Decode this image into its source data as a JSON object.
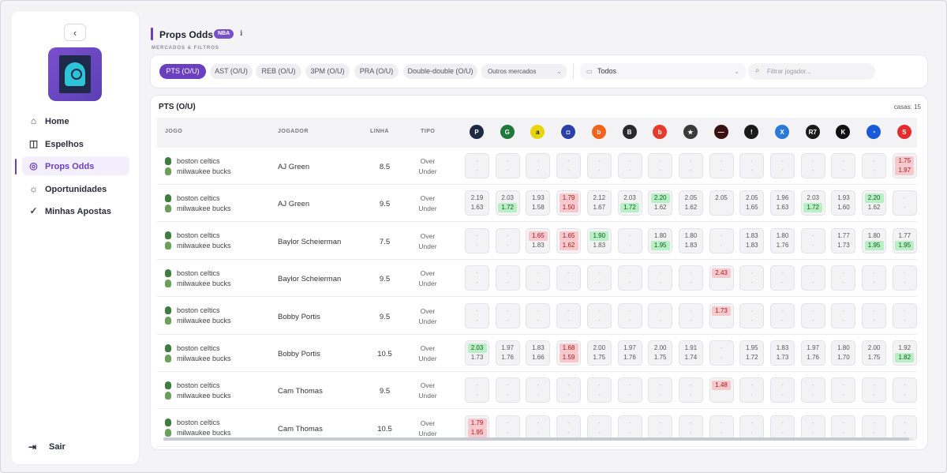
{
  "sidebar": {
    "back_icon": "chevron-left-icon",
    "items": [
      {
        "label": "Home",
        "icon": "home-icon",
        "glyph": "⌂"
      },
      {
        "label": "Espelhos",
        "icon": "book-icon",
        "glyph": "◫"
      },
      {
        "label": "Props Odds",
        "icon": "basketball-icon",
        "glyph": "◎"
      },
      {
        "label": "Oportunidades",
        "icon": "sun-icon",
        "glyph": "☼"
      },
      {
        "label": "Minhas Apostas",
        "icon": "check-icon",
        "glyph": "✓"
      }
    ],
    "active_index": 2,
    "logout_label": "Sair"
  },
  "header": {
    "title": "Props Odds",
    "badge": "NBA",
    "subtitle": "MERCADOS & FILTROS"
  },
  "filters": {
    "markets": [
      "PTS (O/U)",
      "AST (O/U)",
      "REB (O/U)",
      "3PM (O/U)",
      "PRA (O/U)",
      "Double-double (O/U)"
    ],
    "active_market": 0,
    "other_markets_label": "Outros mercados",
    "house_select_value": "Todos",
    "search_placeholder": "Filtrar jogador..."
  },
  "table": {
    "title": "PTS (O/U)",
    "casas_label": "casas: 15",
    "headers": {
      "jogo": "JOGO",
      "jogador": "JOGADOR",
      "linha": "LINHA",
      "tipo": "TIPO"
    },
    "bookmakers": [
      {
        "name": "p-book",
        "color": "#1d2a44",
        "glyph": "P"
      },
      {
        "name": "g-book",
        "color": "#1e7a3a",
        "glyph": "G"
      },
      {
        "name": "a-book",
        "color": "#e8d40a",
        "glyph": "a"
      },
      {
        "name": "square-book",
        "color": "#2a3fa8",
        "glyph": "◘"
      },
      {
        "name": "b-orange-book",
        "color": "#f0641e",
        "glyph": "b"
      },
      {
        "name": "b-dark-book",
        "color": "#2a2a2a",
        "glyph": "B"
      },
      {
        "name": "b-red-book",
        "color": "#e43c2c",
        "glyph": "b"
      },
      {
        "name": "star-book",
        "color": "#3a3a3a",
        "glyph": "★"
      },
      {
        "name": "dark-red-book",
        "color": "#3a1212",
        "glyph": "—"
      },
      {
        "name": "ring-book",
        "color": "#1a1a1a",
        "glyph": "!"
      },
      {
        "name": "x-book",
        "color": "#2b7ad8",
        "glyph": "X"
      },
      {
        "name": "r7-book",
        "color": "#1a1a1a",
        "glyph": "R7"
      },
      {
        "name": "k-book",
        "color": "#111111",
        "glyph": "K"
      },
      {
        "name": "blue-book",
        "color": "#1a5ad8",
        "glyph": "◔"
      },
      {
        "name": "s-book",
        "color": "#e42c2c",
        "glyph": "S"
      }
    ],
    "rows": [
      {
        "home": "boston celtics",
        "away": "milwaukee bucks",
        "player": "AJ Green",
        "line": "8.5",
        "over": "Over",
        "under": "Under",
        "odds": [
          [
            "-",
            "-"
          ],
          [
            "-",
            "-"
          ],
          [
            "-",
            "-"
          ],
          [
            "-",
            "-"
          ],
          [
            "-",
            "-"
          ],
          [
            "-",
            "-"
          ],
          [
            "-",
            "-"
          ],
          [
            "-",
            "-"
          ],
          [
            "-",
            "-"
          ],
          [
            "-",
            "-"
          ],
          [
            "-",
            "-"
          ],
          [
            "-",
            "-"
          ],
          [
            "-",
            "-"
          ],
          [
            "-",
            "-"
          ],
          [
            "1.75r",
            "1.97r"
          ]
        ]
      },
      {
        "home": "boston celtics",
        "away": "milwaukee bucks",
        "player": "AJ Green",
        "line": "9.5",
        "over": "Over",
        "under": "Under",
        "odds": [
          [
            "2.19",
            "1.63"
          ],
          [
            "2.03",
            "1.72g"
          ],
          [
            "1.93",
            "1.58"
          ],
          [
            "1.79r",
            "1.50r"
          ],
          [
            "2.12",
            "1.67"
          ],
          [
            "2.03",
            "1.72g"
          ],
          [
            "2.20g",
            "1.62"
          ],
          [
            "2.05",
            "1.62"
          ],
          [
            "2.05",
            ""
          ],
          [
            "2.05",
            "1.65"
          ],
          [
            "1.96",
            "1.63"
          ],
          [
            "2.03",
            "1.72g"
          ],
          [
            "1.93",
            "1.60"
          ],
          [
            "2.20g",
            "1.62"
          ],
          [
            "-",
            "-"
          ]
        ]
      },
      {
        "home": "boston celtics",
        "away": "milwaukee bucks",
        "player": "Baylor Scheierman",
        "line": "7.5",
        "over": "Over",
        "under": "Under",
        "odds": [
          [
            "-",
            "-"
          ],
          [
            "-",
            "-"
          ],
          [
            "1.65r",
            "1.83"
          ],
          [
            "1.65r",
            "1.62r"
          ],
          [
            "1.90g",
            "1.83"
          ],
          [
            "-",
            "-"
          ],
          [
            "1.80",
            "1.95g"
          ],
          [
            "1.80",
            "1.83"
          ],
          [
            "-",
            "-"
          ],
          [
            "1.83",
            "1.83"
          ],
          [
            "1.80",
            "1.76"
          ],
          [
            "-",
            "-"
          ],
          [
            "1.77",
            "1.73"
          ],
          [
            "1.80",
            "1.95g"
          ],
          [
            "1.77",
            "1.95g"
          ]
        ]
      },
      {
        "home": "boston celtics",
        "away": "milwaukee bucks",
        "player": "Baylor Scheierman",
        "line": "9.5",
        "over": "Over",
        "under": "Under",
        "odds": [
          [
            "-",
            "-"
          ],
          [
            "-",
            "-"
          ],
          [
            "-",
            "-"
          ],
          [
            "-",
            "-"
          ],
          [
            "-",
            "-"
          ],
          [
            "-",
            "-"
          ],
          [
            "-",
            "-"
          ],
          [
            "-",
            "-"
          ],
          [
            "2.43r",
            ""
          ],
          [
            "-",
            "-"
          ],
          [
            "-",
            "-"
          ],
          [
            "-",
            "-"
          ],
          [
            "-",
            "-"
          ],
          [
            "-",
            "-"
          ],
          [
            "-",
            "-"
          ]
        ]
      },
      {
        "home": "boston celtics",
        "away": "milwaukee bucks",
        "player": "Bobby Portis",
        "line": "9.5",
        "over": "Over",
        "under": "Under",
        "odds": [
          [
            "-",
            "-"
          ],
          [
            "-",
            "-"
          ],
          [
            "-",
            "-"
          ],
          [
            "-",
            "-"
          ],
          [
            "-",
            "-"
          ],
          [
            "-",
            "-"
          ],
          [
            "-",
            "-"
          ],
          [
            "-",
            "-"
          ],
          [
            "1.73r",
            ""
          ],
          [
            "-",
            "-"
          ],
          [
            "-",
            "-"
          ],
          [
            "-",
            "-"
          ],
          [
            "-",
            "-"
          ],
          [
            "-",
            "-"
          ],
          [
            "-",
            "-"
          ]
        ]
      },
      {
        "home": "boston celtics",
        "away": "milwaukee bucks",
        "player": "Bobby Portis",
        "line": "10.5",
        "over": "Over",
        "under": "Under",
        "odds": [
          [
            "2.03g",
            "1.73"
          ],
          [
            "1.97",
            "1.76"
          ],
          [
            "1.83",
            "1.66"
          ],
          [
            "1.68r",
            "1.59r"
          ],
          [
            "2.00",
            "1.75"
          ],
          [
            "1.97",
            "1.76"
          ],
          [
            "2.00",
            "1.75"
          ],
          [
            "1.91",
            "1.74"
          ],
          [
            "-",
            "-"
          ],
          [
            "1.95",
            "1.72"
          ],
          [
            "1.83",
            "1.73"
          ],
          [
            "1.97",
            "1.76"
          ],
          [
            "1.80",
            "1.70"
          ],
          [
            "2.00",
            "1.75"
          ],
          [
            "1.92",
            "1.82g"
          ]
        ]
      },
      {
        "home": "boston celtics",
        "away": "milwaukee bucks",
        "player": "Cam Thomas",
        "line": "9.5",
        "over": "Over",
        "under": "Under",
        "odds": [
          [
            "-",
            "-"
          ],
          [
            "-",
            "-"
          ],
          [
            "-",
            "-"
          ],
          [
            "-",
            "-"
          ],
          [
            "-",
            "-"
          ],
          [
            "-",
            "-"
          ],
          [
            "-",
            "-"
          ],
          [
            "-",
            "-"
          ],
          [
            "1.48r",
            ""
          ],
          [
            "-",
            "-"
          ],
          [
            "-",
            "-"
          ],
          [
            "-",
            "-"
          ],
          [
            "-",
            "-"
          ],
          [
            "-",
            "-"
          ],
          [
            "-",
            "-"
          ]
        ]
      },
      {
        "home": "boston celtics",
        "away": "milwaukee bucks",
        "player": "Cam Thomas",
        "line": "10.5",
        "over": "Over",
        "under": "Under",
        "odds": [
          [
            "1.79r",
            "1.95r"
          ],
          [
            "-",
            "-"
          ],
          [
            "-",
            "-"
          ],
          [
            "-",
            "-"
          ],
          [
            "-",
            "-"
          ],
          [
            "-",
            "-"
          ],
          [
            "-",
            "-"
          ],
          [
            "-",
            "-"
          ],
          [
            "-",
            "-"
          ],
          [
            "-",
            "-"
          ],
          [
            "-",
            "-"
          ],
          [
            "-",
            "-"
          ],
          [
            "-",
            "-"
          ],
          [
            "-",
            "-"
          ],
          [
            "-",
            "-"
          ]
        ]
      }
    ]
  }
}
